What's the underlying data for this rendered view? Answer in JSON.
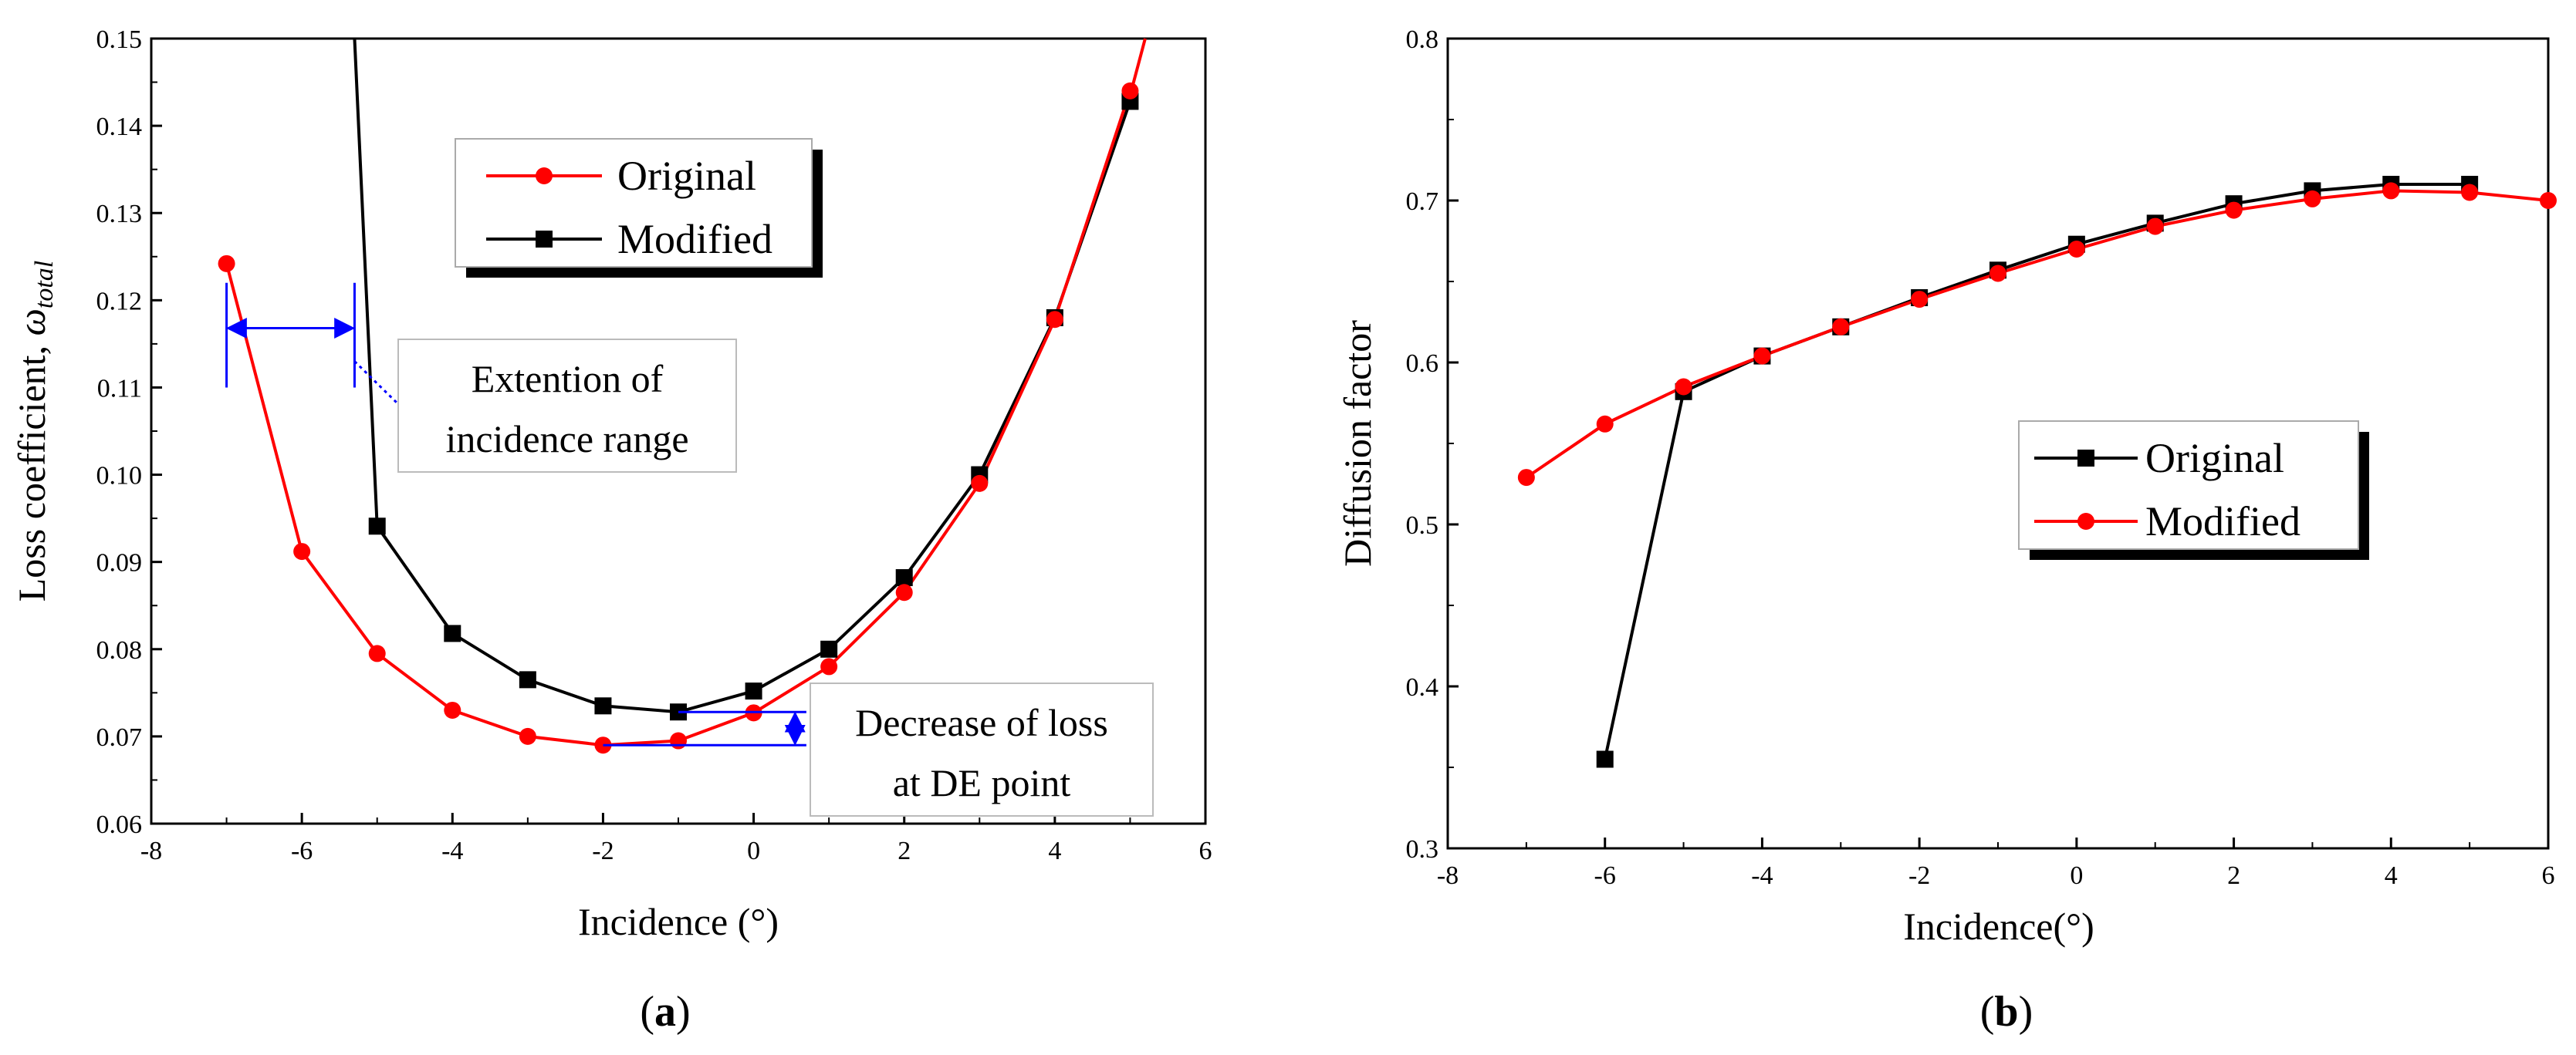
{
  "chart_data": [
    {
      "id": "a",
      "type": "line",
      "caption_letter": "a",
      "xlabel": "Incidence (°)",
      "ylabel_main": "Loss coefficient, ",
      "ylabel_symbol": "ω",
      "ylabel_sub": "total",
      "xlim": [
        -8,
        6
      ],
      "ylim": [
        0.06,
        0.15
      ],
      "xticks": [
        -8,
        -6,
        -4,
        -2,
        0,
        2,
        4,
        6
      ],
      "yticks": [
        0.06,
        0.07,
        0.08,
        0.09,
        0.1,
        0.11,
        0.12,
        0.13,
        0.14,
        0.15
      ],
      "ytick_labels": [
        "0.06",
        "0.07",
        "0.08",
        "0.09",
        "0.10",
        "0.11",
        "0.12",
        "0.13",
        "0.14",
        "0.15"
      ],
      "series": [
        {
          "name": "Original",
          "color": "#ff0000",
          "marker": "circle",
          "x": [
            -7,
            -6,
            -5,
            -4,
            -3,
            -2,
            -1,
            0,
            1,
            2,
            3,
            4,
            5
          ],
          "y": [
            0.1242,
            0.0912,
            0.0795,
            0.073,
            0.07,
            0.069,
            0.0695,
            0.0727,
            0.078,
            0.0865,
            0.099,
            0.1178,
            0.144
          ]
        },
        {
          "name": "Modified",
          "color": "#000000",
          "marker": "square",
          "x": [
            -5,
            -4,
            -3,
            -2,
            -1,
            0,
            1,
            2,
            3,
            4,
            5
          ],
          "y": [
            0.0941,
            0.0818,
            0.0765,
            0.0735,
            0.0728,
            0.0752,
            0.08,
            0.0882,
            0.1,
            0.118,
            0.1428
          ]
        }
      ],
      "modified_steep_curve": {
        "x": [
          -5.3,
          -5
        ],
        "y": [
          0.15,
          0.0941
        ]
      },
      "tail_curve": {
        "x": [
          5,
          5.2
        ],
        "y": [
          0.1435,
          0.15
        ]
      },
      "legend": [
        "Original",
        "Modified"
      ],
      "annotations": {
        "range_text_line1": "Extention of",
        "range_text_line2": "incidence range",
        "loss_text_line1": "Decrease of loss",
        "loss_text_line2": "at DE point"
      },
      "annotation_color": "#0000ff"
    },
    {
      "id": "b",
      "type": "line",
      "caption_letter": "b",
      "xlabel": "Incidence(°)",
      "ylabel": "Diffusion factor",
      "xlim": [
        -8,
        6
      ],
      "ylim": [
        0.3,
        0.8
      ],
      "xticks": [
        -8,
        -6,
        -4,
        -2,
        0,
        2,
        4,
        6
      ],
      "yticks": [
        0.3,
        0.4,
        0.5,
        0.6,
        0.7,
        0.8
      ],
      "ytick_labels": [
        "0.3",
        "0.4",
        "0.5",
        "0.6",
        "0.7",
        "0.8"
      ],
      "series": [
        {
          "name": "Original",
          "color": "#000000",
          "marker": "square",
          "x": [
            -6,
            -5,
            -4,
            -3,
            -2,
            -1,
            0,
            1,
            2,
            3,
            4,
            5
          ],
          "y": [
            0.355,
            0.582,
            0.604,
            0.622,
            0.64,
            0.657,
            0.673,
            0.686,
            0.698,
            0.706,
            0.71,
            0.71
          ]
        },
        {
          "name": "Modified",
          "color": "#ff0000",
          "marker": "circle",
          "x": [
            -7,
            -6,
            -5,
            -4,
            -3,
            -2,
            -1,
            0,
            1,
            2,
            3,
            4,
            5,
            6
          ],
          "y": [
            0.529,
            0.562,
            0.585,
            0.604,
            0.622,
            0.639,
            0.655,
            0.67,
            0.684,
            0.694,
            0.701,
            0.706,
            0.705,
            0.7
          ]
        }
      ],
      "legend": [
        "Original",
        "Modified"
      ]
    }
  ]
}
